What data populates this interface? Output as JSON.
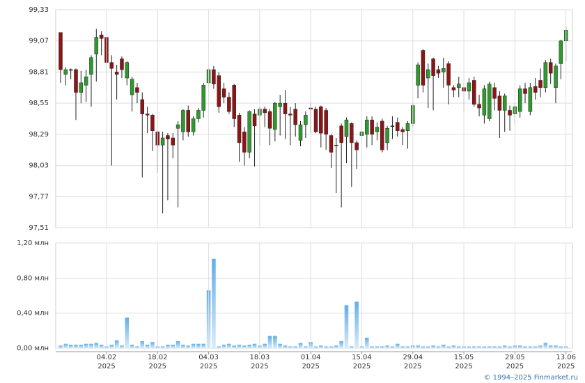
{
  "chart_data": [
    {
      "type": "candlestick",
      "up_color": "#2e9a2e",
      "down_color": "#8c1616",
      "ylim": [
        97.51,
        99.33
      ],
      "yticks": [
        {
          "value": 97.51,
          "label": "97,51"
        },
        {
          "value": 97.77,
          "label": "97,77"
        },
        {
          "value": 98.03,
          "label": "98,03"
        },
        {
          "value": 98.29,
          "label": "98,29"
        },
        {
          "value": 98.55,
          "label": "98,55"
        },
        {
          "value": 98.81,
          "label": "98,81"
        },
        {
          "value": 99.07,
          "label": "99,07"
        },
        {
          "value": 99.33,
          "label": "99,33"
        }
      ],
      "grid": true,
      "open": [
        99.14,
        98.79,
        98.83,
        98.83,
        98.64,
        98.7,
        98.79,
        98.96,
        99.12,
        99.1,
        98.89,
        98.81,
        98.92,
        98.76,
        98.62,
        98.68,
        98.58,
        98.46,
        98.45,
        98.31,
        98.2,
        98.28,
        98.26,
        98.34,
        98.31,
        98.49,
        98.31,
        98.42,
        98.49,
        98.72,
        98.83,
        98.78,
        98.67,
        98.6,
        98.7,
        98.45,
        98.31,
        98.14,
        98.46,
        98.45,
        98.5,
        98.48,
        98.33,
        98.52,
        98.55,
        98.46,
        98.5,
        98.24,
        98.37,
        98.51,
        98.5,
        98.52,
        98.49,
        98.28,
        98.2,
        98.36,
        98.27,
        98.38,
        98.22,
        98.28,
        98.29,
        98.41,
        98.31,
        98.4,
        98.22,
        98.36,
        98.39,
        98.33,
        98.32,
        98.38,
        98.7,
        98.99,
        98.76,
        98.92,
        98.83,
        98.81,
        98.88,
        98.68,
        98.68,
        98.68,
        98.65,
        98.74,
        98.54,
        98.45,
        98.42,
        98.68,
        98.61,
        98.49,
        98.49,
        98.46,
        98.48,
        98.67,
        98.48,
        98.69,
        98.74,
        98.68,
        98.89,
        98.68,
        98.88,
        99.07
      ],
      "high": [
        99.14,
        98.85,
        98.84,
        98.84,
        98.82,
        98.83,
        98.95,
        99.17,
        99.15,
        99.13,
        98.95,
        98.87,
        98.94,
        98.9,
        98.77,
        98.72,
        98.64,
        98.52,
        98.46,
        98.32,
        98.31,
        98.3,
        98.3,
        98.4,
        98.5,
        98.53,
        98.44,
        98.51,
        98.72,
        98.85,
        98.86,
        98.81,
        98.72,
        98.64,
        98.71,
        98.47,
        98.35,
        98.49,
        98.5,
        98.52,
        98.52,
        98.5,
        98.56,
        98.62,
        98.66,
        98.52,
        98.55,
        98.4,
        98.48,
        98.55,
        98.52,
        98.53,
        98.51,
        98.29,
        98.26,
        98.38,
        98.43,
        98.39,
        98.24,
        98.35,
        98.44,
        98.44,
        98.39,
        98.42,
        98.36,
        98.44,
        98.43,
        98.35,
        98.4,
        98.55,
        98.89,
        99.0,
        98.88,
        98.93,
        98.86,
        98.93,
        98.9,
        98.7,
        98.77,
        98.72,
        98.76,
        98.77,
        98.62,
        98.7,
        98.73,
        98.72,
        98.65,
        98.63,
        98.53,
        98.55,
        98.7,
        98.72,
        98.72,
        98.76,
        98.84,
        98.91,
        98.92,
        98.88,
        99.08,
        99.19
      ],
      "low": [
        98.72,
        98.7,
        98.75,
        98.41,
        98.55,
        98.56,
        98.52,
        98.73,
        98.95,
        98.65,
        98.03,
        98.58,
        98.76,
        98.7,
        98.48,
        98.55,
        97.93,
        98.3,
        98.15,
        97.97,
        97.63,
        97.74,
        98.09,
        97.68,
        98.24,
        98.27,
        98.28,
        98.39,
        98.43,
        98.7,
        98.67,
        98.47,
        98.55,
        98.46,
        98.35,
        98.06,
        98.03,
        98.09,
        98.02,
        98.2,
        98.35,
        98.2,
        98.23,
        98.28,
        98.25,
        98.2,
        98.27,
        98.19,
        98.26,
        98.3,
        98.3,
        98.18,
        98.16,
        98.01,
        97.8,
        97.68,
        98.05,
        97.85,
        98.0,
        98.21,
        98.18,
        98.2,
        98.24,
        98.14,
        98.16,
        98.25,
        98.27,
        98.2,
        98.17,
        98.35,
        98.59,
        98.64,
        98.51,
        98.49,
        98.76,
        98.68,
        98.54,
        98.6,
        98.6,
        98.48,
        98.58,
        98.52,
        98.44,
        98.38,
        98.4,
        98.49,
        98.26,
        98.31,
        98.32,
        98.38,
        98.43,
        98.55,
        98.45,
        98.58,
        98.6,
        98.64,
        98.71,
        98.55,
        98.75,
        98.9
      ],
      "close": [
        98.83,
        98.83,
        98.83,
        98.64,
        98.72,
        98.77,
        98.93,
        99.1,
        99.09,
        98.89,
        98.84,
        98.79,
        98.83,
        98.89,
        98.75,
        98.64,
        98.46,
        98.45,
        98.32,
        98.2,
        98.26,
        98.25,
        98.2,
        98.37,
        98.49,
        98.31,
        98.42,
        98.49,
        98.7,
        98.83,
        98.71,
        98.52,
        98.6,
        98.48,
        98.42,
        98.22,
        98.14,
        98.48,
        98.36,
        98.5,
        98.47,
        98.34,
        98.55,
        98.55,
        98.46,
        98.45,
        98.37,
        98.37,
        98.45,
        98.5,
        98.31,
        98.3,
        98.29,
        98.14,
        98.2,
        98.22,
        98.41,
        98.22,
        98.16,
        98.31,
        98.41,
        98.29,
        98.35,
        98.16,
        98.34,
        98.36,
        98.32,
        98.31,
        98.38,
        98.53,
        98.87,
        98.7,
        98.83,
        98.78,
        98.8,
        98.84,
        98.7,
        98.66,
        98.71,
        98.65,
        98.72,
        98.54,
        98.51,
        98.67,
        98.71,
        98.59,
        98.49,
        98.61,
        98.45,
        98.52,
        98.67,
        98.63,
        98.68,
        98.64,
        98.68,
        98.89,
        98.8,
        98.86,
        99.07,
        99.16
      ]
    },
    {
      "type": "bar",
      "color": "#7fbfee",
      "ylim": [
        0,
        1.2
      ],
      "yticks": [
        {
          "value": 0,
          "label": "0,00 млн"
        },
        {
          "value": 0.4,
          "label": "0,40 млн"
        },
        {
          "value": 0.8,
          "label": "0,80 млн"
        },
        {
          "value": 1.2,
          "label": "1,20 млн"
        }
      ],
      "grid": true,
      "categories": [
        null,
        null,
        null,
        null,
        null,
        null,
        null,
        null,
        null,
        "04.02",
        null,
        null,
        null,
        null,
        null,
        null,
        null,
        null,
        null,
        "18.02",
        null,
        null,
        null,
        null,
        null,
        null,
        null,
        null,
        null,
        "04.03",
        null,
        null,
        null,
        null,
        null,
        null,
        null,
        null,
        null,
        "18.03",
        null,
        null,
        null,
        null,
        null,
        null,
        null,
        null,
        null,
        "01.04",
        null,
        null,
        null,
        null,
        null,
        null,
        null,
        null,
        null,
        "15.04",
        null,
        null,
        null,
        null,
        null,
        null,
        null,
        null,
        null,
        "29.04",
        null,
        null,
        null,
        null,
        null,
        null,
        null,
        null,
        null,
        "15.05",
        null,
        null,
        null,
        null,
        null,
        null,
        null,
        null,
        null,
        "29.05",
        null,
        null,
        null,
        null,
        null,
        null,
        null,
        null,
        null,
        "13.06"
      ],
      "category_years": [
        null,
        null,
        null,
        null,
        null,
        null,
        null,
        null,
        null,
        "2025",
        null,
        null,
        null,
        null,
        null,
        null,
        null,
        null,
        null,
        "2025",
        null,
        null,
        null,
        null,
        null,
        null,
        null,
        null,
        null,
        "2025",
        null,
        null,
        null,
        null,
        null,
        null,
        null,
        null,
        null,
        "2025",
        null,
        null,
        null,
        null,
        null,
        null,
        null,
        null,
        null,
        "2025",
        null,
        null,
        null,
        null,
        null,
        null,
        null,
        null,
        null,
        "2025",
        null,
        null,
        null,
        null,
        null,
        null,
        null,
        null,
        null,
        "2025",
        null,
        null,
        null,
        null,
        null,
        null,
        null,
        null,
        null,
        "2025",
        null,
        null,
        null,
        null,
        null,
        null,
        null,
        null,
        null,
        "2025",
        null,
        null,
        null,
        null,
        null,
        null,
        null,
        null,
        null,
        "2025"
      ],
      "values": [
        0.03,
        0.05,
        0.04,
        0.04,
        0.04,
        0.05,
        0.05,
        0.06,
        0.04,
        0.02,
        0.04,
        0.09,
        0.03,
        0.35,
        0.04,
        0.02,
        0.08,
        0.04,
        0.07,
        0.02,
        0.02,
        0.04,
        0.04,
        0.08,
        0.04,
        0.03,
        0.05,
        0.05,
        0.05,
        0.66,
        1.02,
        0.02,
        0.04,
        0.05,
        0.03,
        0.04,
        0.03,
        0.04,
        0.05,
        0.03,
        0.05,
        0.14,
        0.14,
        0.05,
        0.03,
        0.02,
        0.02,
        0.06,
        0.02,
        0.07,
        0.02,
        0.03,
        0.02,
        0.02,
        0.03,
        0.08,
        0.49,
        0.02,
        0.53,
        0.02,
        0.12,
        0.02,
        0.02,
        0.02,
        0.03,
        0.02,
        0.05,
        0.02,
        0.02,
        0.03,
        0.03,
        0.02,
        0.02,
        0.03,
        0.02,
        0.04,
        0.02,
        0.03,
        0.02,
        0.02,
        0.02,
        0.02,
        0.02,
        0.02,
        0.02,
        0.02,
        0.02,
        0.03,
        0.02,
        0.03,
        0.03,
        0.02,
        0.02,
        0.02,
        0.03,
        0.06,
        0.03,
        0.03,
        0.02,
        0.02
      ],
      "source": "© 1994–2025 Finmarket.ru"
    }
  ]
}
